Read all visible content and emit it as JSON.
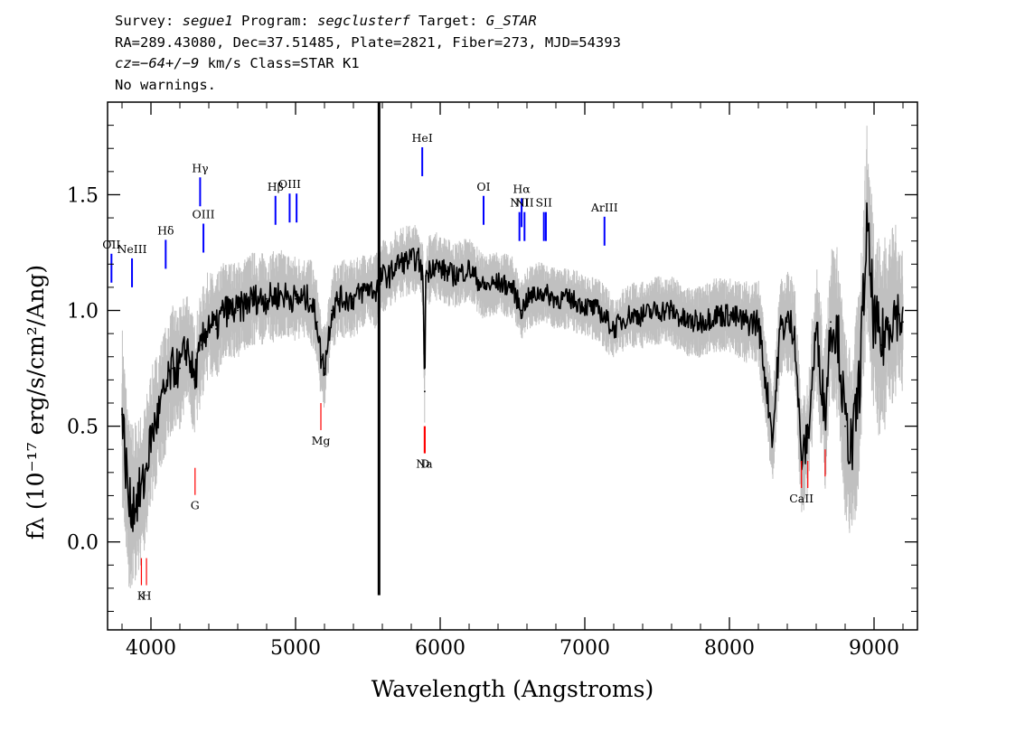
{
  "header": {
    "survey_label": "Survey:",
    "survey": "segue1",
    "program_label": "Program:",
    "program": "segclusterf",
    "target_label": "Target:",
    "target": "G_STAR",
    "line2": "RA=289.43080, Dec=37.51485, Plate=2821, Fiber=273, MJD=54393",
    "cz_label": "cz",
    "cz_value": "=−64+/−9",
    "cz_rest": " km/s Class=STAR K1",
    "line4": "No warnings."
  },
  "chart_data": {
    "type": "line",
    "title": "",
    "xlabel": "Wavelength (Angstroms)",
    "ylabel": "fλ (10⁻¹⁷ erg/s/cm²/Ang)",
    "xlim": [
      3700,
      9300
    ],
    "ylim": [
      -0.38,
      1.9
    ],
    "x_ticks": [
      4000,
      5000,
      6000,
      7000,
      8000,
      9000
    ],
    "x_tick_labels": [
      "4000",
      "5000",
      "6000",
      "7000",
      "8000",
      "9000"
    ],
    "y_ticks": [
      0.0,
      0.5,
      1.0,
      1.5
    ],
    "y_tick_labels": [
      "0.0",
      "0.5",
      "1.0",
      "1.5"
    ],
    "grid": false,
    "series": [
      {
        "role": "smoothed-flux",
        "color": "#000000",
        "x": [
          3800,
          3850,
          3900,
          3950,
          4000,
          4050,
          4100,
          4150,
          4200,
          4250,
          4300,
          4350,
          4400,
          4450,
          4500,
          4600,
          4700,
          4800,
          4900,
          5000,
          5100,
          5150,
          5175,
          5200,
          5250,
          5300,
          5400,
          5500,
          5550,
          5600,
          5650,
          5700,
          5800,
          5850,
          5880,
          5893,
          5900,
          5950,
          6000,
          6100,
          6200,
          6300,
          6400,
          6500,
          6563,
          6600,
          6700,
          6800,
          6900,
          7000,
          7100,
          7200,
          7300,
          7400,
          7500,
          7600,
          7700,
          7800,
          7900,
          8000,
          8100,
          8200,
          8300,
          8350,
          8400,
          8450,
          8498,
          8542,
          8600,
          8662,
          8700,
          8750,
          8800,
          8850,
          8900,
          8950,
          9000,
          9050,
          9100,
          9150,
          9200
        ],
        "y": [
          0.55,
          0.15,
          0.18,
          0.25,
          0.45,
          0.55,
          0.65,
          0.75,
          0.75,
          0.85,
          0.7,
          0.85,
          0.95,
          0.92,
          1.0,
          1.0,
          1.05,
          1.05,
          1.07,
          1.05,
          1.05,
          0.95,
          0.8,
          0.75,
          1.0,
          1.05,
          1.05,
          1.1,
          1.08,
          1.15,
          1.15,
          1.2,
          1.22,
          1.22,
          1.15,
          0.65,
          1.15,
          1.2,
          1.18,
          1.15,
          1.18,
          1.1,
          1.12,
          1.1,
          1.0,
          1.05,
          1.08,
          1.05,
          1.05,
          1.02,
          1.0,
          0.92,
          0.98,
          0.98,
          1.0,
          1.0,
          0.95,
          0.95,
          0.98,
          0.98,
          0.95,
          0.95,
          0.45,
          0.92,
          0.95,
          0.92,
          0.35,
          0.45,
          0.92,
          0.55,
          0.95,
          0.9,
          0.5,
          0.4,
          0.7,
          1.35,
          0.95,
          0.85,
          0.95,
          1.0,
          0.95
        ]
      },
      {
        "role": "flux-noise-envelope",
        "color": "#c0c0c0",
        "x": [
          3800,
          4000,
          4500,
          5000,
          5500,
          6000,
          6500,
          7000,
          7500,
          8000,
          8500,
          8800,
          9000,
          9200
        ],
        "y_spread": [
          0.3,
          0.22,
          0.16,
          0.14,
          0.12,
          0.11,
          0.1,
          0.1,
          0.11,
          0.12,
          0.18,
          0.3,
          0.35,
          0.25
        ]
      }
    ],
    "annotations": {
      "sky_line": {
        "x": 5577,
        "y_top": 1.9,
        "y_bottom": -0.23,
        "color": "#000000"
      },
      "emission_lines": [
        {
          "label": "OII",
          "x": 3727,
          "y": 1.12,
          "color": "#0000ff"
        },
        {
          "label": "NeIII",
          "x": 3869,
          "y": 1.1,
          "color": "#0000ff"
        },
        {
          "label": "Hδ",
          "x": 4102,
          "y": 1.18,
          "color": "#0000ff"
        },
        {
          "label": "Hγ",
          "x": 4340,
          "y": 1.45,
          "color": "#0000ff"
        },
        {
          "label": "OIII",
          "x": 4363,
          "y": 1.25,
          "color": "#0000ff"
        },
        {
          "label": "Hβ",
          "x": 4861,
          "y": 1.37,
          "color": "#0000ff"
        },
        {
          "label": "OIII",
          "x": 4959,
          "y": 1.38,
          "color": "#0000ff"
        },
        {
          "label": "",
          "x": 5007,
          "y": 1.38,
          "color": "#0000ff"
        },
        {
          "label": "HeI",
          "x": 5876,
          "y": 1.58,
          "color": "#0000ff"
        },
        {
          "label": "OI",
          "x": 6300,
          "y": 1.37,
          "color": "#0000ff"
        },
        {
          "label": "NII",
          "x": 6548,
          "y": 1.3,
          "color": "#0000ff"
        },
        {
          "label": "Hα",
          "x": 6563,
          "y": 1.36,
          "color": "#0000ff"
        },
        {
          "label": "NII",
          "x": 6583,
          "y": 1.3,
          "color": "#0000ff"
        },
        {
          "label": "SII",
          "x": 6717,
          "y": 1.3,
          "color": "#0000ff"
        },
        {
          "label": "",
          "x": 6731,
          "y": 1.3,
          "color": "#0000ff"
        },
        {
          "label": "ArIII",
          "x": 7136,
          "y": 1.28,
          "color": "#0000ff"
        }
      ],
      "absorption_lines": [
        {
          "label": "K",
          "x": 3934,
          "y": -0.07,
          "color": "#ff0000"
        },
        {
          "label": "H",
          "x": 3969,
          "y": -0.07,
          "color": "#ff0000"
        },
        {
          "label": "G",
          "x": 4305,
          "y": 0.32,
          "color": "#ff0000"
        },
        {
          "label": "Mg",
          "x": 5175,
          "y": 0.6,
          "color": "#ff0000"
        },
        {
          "label": "Na",
          "x": 5890,
          "y": 0.5,
          "color": "#ff0000"
        },
        {
          "label": "D",
          "x": 5896,
          "y": 0.5,
          "color": "#ff0000"
        },
        {
          "label": "CaII",
          "x": 8498,
          "y": 0.35,
          "color": "#ff0000"
        },
        {
          "label": "",
          "x": 8542,
          "y": 0.35,
          "color": "#ff0000"
        },
        {
          "label": "",
          "x": 8662,
          "y": 0.4,
          "color": "#ff0000"
        }
      ]
    }
  }
}
